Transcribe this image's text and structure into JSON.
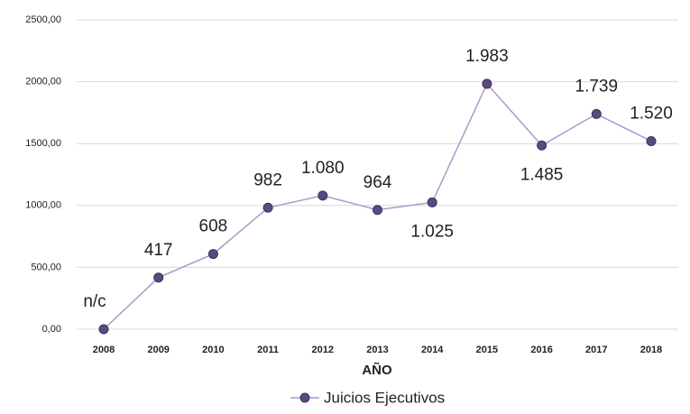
{
  "chart_data": {
    "type": "line",
    "categories": [
      "2008",
      "2009",
      "2010",
      "2011",
      "2012",
      "2013",
      "2014",
      "2015",
      "2016",
      "2017",
      "2018"
    ],
    "series": [
      {
        "name": "Juicios Ejecutivos",
        "color": "#5b4a80",
        "values": [
          0,
          417,
          608,
          982,
          1080,
          964,
          1025,
          1983,
          1485,
          1739,
          1520
        ],
        "value_labels": [
          "n/c",
          "417",
          "608",
          "982",
          "1.080",
          "964",
          "1.025",
          "1.983",
          "1.485",
          "1.739",
          "1.520"
        ]
      }
    ],
    "x_label": "AÑO",
    "ylim": [
      0,
      2500
    ],
    "yticks": [
      {
        "value": 0,
        "label": "0,00"
      },
      {
        "value": 500,
        "label": "500,00"
      },
      {
        "value": 1000,
        "label": "1000,00"
      },
      {
        "value": 1500,
        "label": "1500,00"
      },
      {
        "value": 2000,
        "label": "2000,00"
      },
      {
        "value": 2500,
        "label": "2500,00"
      }
    ],
    "grid": true,
    "legend": "bottom"
  }
}
